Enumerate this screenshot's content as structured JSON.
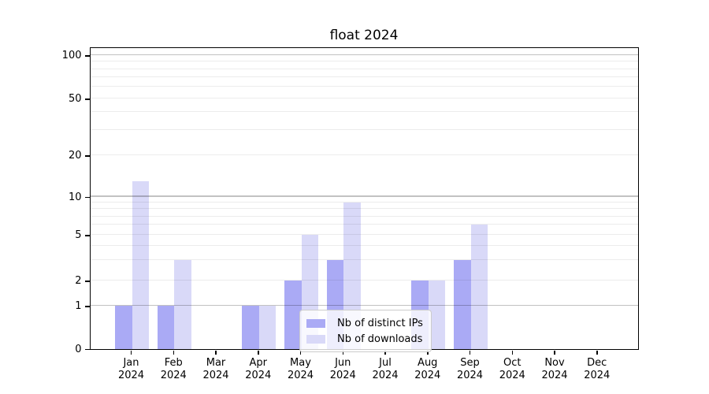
{
  "chart_data": {
    "type": "bar",
    "title": "float 2024",
    "categories": [
      "Jan 2024",
      "Feb 2024",
      "Mar 2024",
      "Apr 2024",
      "May 2024",
      "Jun 2024",
      "Jul 2024",
      "Aug 2024",
      "Sep 2024",
      "Oct 2024",
      "Nov 2024",
      "Dec 2024"
    ],
    "series": [
      {
        "name": "Nb of distinct IPs",
        "color": "#aaaaf5",
        "values": [
          1,
          1,
          0,
          1,
          2,
          3,
          0,
          2,
          3,
          0,
          0,
          0
        ]
      },
      {
        "name": "Nb of downloads",
        "color": "#d9d9f8",
        "values": [
          13,
          3,
          0,
          1,
          5,
          9,
          0,
          2,
          6,
          0,
          0,
          0
        ]
      }
    ],
    "y_axis": {
      "scale": "symlog",
      "tick_values": [
        0,
        1,
        2,
        5,
        10,
        20,
        50,
        100
      ],
      "tick_labels": [
        "0",
        "1",
        "2",
        "5",
        "10",
        "20",
        "50",
        "100"
      ],
      "major_grid_values": [
        1,
        10,
        100
      ],
      "minor_grid_values": [
        2,
        3,
        4,
        5,
        6,
        7,
        8,
        9,
        20,
        30,
        40,
        50,
        60,
        70,
        80,
        90
      ],
      "ylim": [
        0,
        128
      ]
    },
    "legend": {
      "position": "lower-center"
    },
    "grid": true
  }
}
